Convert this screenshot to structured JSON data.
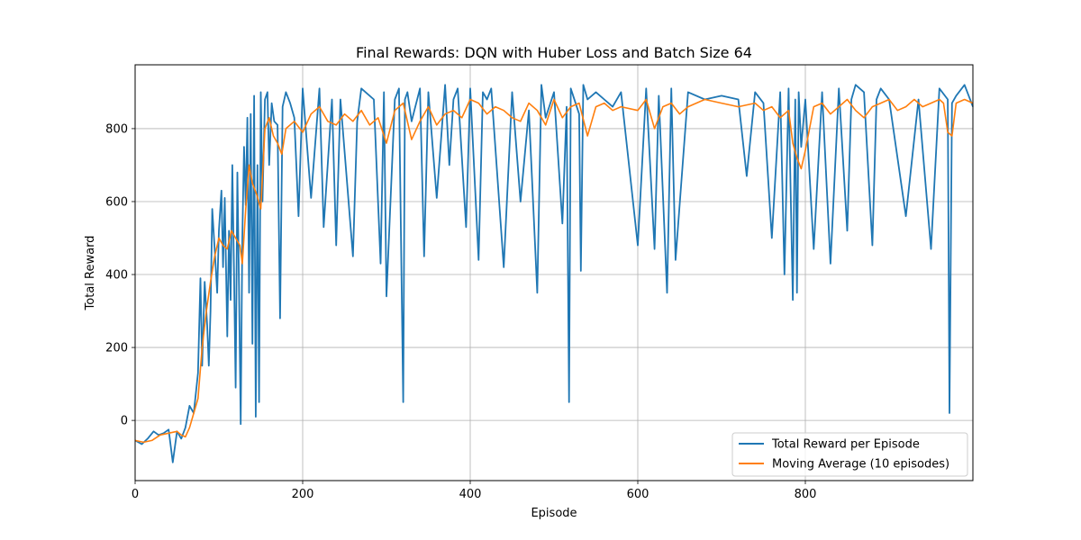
{
  "chart_data": {
    "type": "line",
    "title": "Final Rewards: DQN with Huber Loss and Batch Size 64",
    "xlabel": "Episode",
    "ylabel": "Total Reward",
    "xlim": [
      0,
      1000
    ],
    "ylim": [
      -165,
      975
    ],
    "xticks": [
      0,
      200,
      400,
      600,
      800
    ],
    "yticks": [
      0,
      200,
      400,
      600,
      800
    ],
    "grid": true,
    "legend_position": "lower-right",
    "series": [
      {
        "name": "Total Reward per Episode",
        "color": "#1f77b4",
        "x": [
          0,
          8,
          15,
          22,
          28,
          34,
          40,
          45,
          50,
          55,
          60,
          65,
          70,
          75,
          78,
          80,
          83,
          86,
          88,
          90,
          92,
          95,
          98,
          100,
          103,
          105,
          107,
          110,
          112,
          114,
          116,
          118,
          120,
          122,
          124,
          126,
          128,
          130,
          132,
          134,
          136,
          138,
          140,
          142,
          144,
          146,
          148,
          150,
          152,
          155,
          158,
          160,
          163,
          166,
          170,
          173,
          176,
          180,
          185,
          190,
          195,
          200,
          210,
          220,
          225,
          235,
          240,
          245,
          260,
          265,
          270,
          285,
          293,
          297,
          300,
          310,
          315,
          320,
          322,
          325,
          330,
          340,
          345,
          350,
          360,
          370,
          375,
          380,
          385,
          395,
          400,
          410,
          415,
          420,
          425,
          440,
          450,
          460,
          470,
          480,
          485,
          490,
          500,
          510,
          515,
          518,
          520,
          530,
          532,
          535,
          540,
          550,
          560,
          570,
          580,
          600,
          610,
          620,
          625,
          635,
          640,
          645,
          660,
          680,
          700,
          720,
          730,
          740,
          750,
          760,
          770,
          775,
          780,
          785,
          788,
          790,
          792,
          795,
          800,
          810,
          820,
          830,
          840,
          850,
          855,
          860,
          870,
          880,
          885,
          890,
          900,
          920,
          935,
          950,
          960,
          970,
          972,
          975,
          980,
          990,
          1000
        ],
        "y": [
          -55,
          -65,
          -50,
          -30,
          -40,
          -35,
          -25,
          -115,
          -30,
          -50,
          -20,
          40,
          20,
          130,
          390,
          150,
          380,
          260,
          150,
          300,
          580,
          470,
          350,
          520,
          630,
          420,
          610,
          230,
          520,
          330,
          700,
          420,
          90,
          680,
          370,
          -10,
          500,
          750,
          590,
          830,
          350,
          840,
          210,
          890,
          10,
          700,
          50,
          900,
          600,
          880,
          900,
          700,
          870,
          820,
          810,
          280,
          860,
          900,
          870,
          830,
          560,
          910,
          610,
          910,
          530,
          880,
          480,
          880,
          450,
          820,
          910,
          880,
          430,
          900,
          340,
          880,
          910,
          50,
          880,
          900,
          820,
          910,
          450,
          900,
          610,
          920,
          700,
          880,
          910,
          530,
          910,
          440,
          900,
          880,
          910,
          420,
          900,
          600,
          850,
          350,
          920,
          830,
          900,
          540,
          860,
          50,
          910,
          840,
          410,
          920,
          880,
          900,
          880,
          860,
          900,
          480,
          910,
          470,
          890,
          350,
          910,
          440,
          900,
          880,
          890,
          880,
          670,
          900,
          870,
          500,
          900,
          400,
          910,
          330,
          880,
          350,
          900,
          750,
          880,
          470,
          900,
          430,
          910,
          520,
          880,
          920,
          900,
          480,
          880,
          910,
          880,
          560,
          880,
          470,
          910,
          880,
          20,
          870,
          890,
          920,
          860
        ]
      },
      {
        "name": "Moving Average (10 episodes)",
        "color": "#ff7f0e",
        "x": [
          0,
          10,
          20,
          30,
          40,
          50,
          55,
          60,
          65,
          70,
          75,
          80,
          85,
          90,
          95,
          100,
          105,
          110,
          115,
          120,
          125,
          128,
          132,
          136,
          140,
          145,
          150,
          155,
          160,
          165,
          170,
          175,
          180,
          190,
          200,
          210,
          220,
          230,
          240,
          250,
          260,
          270,
          280,
          290,
          300,
          310,
          320,
          330,
          340,
          350,
          360,
          370,
          380,
          390,
          400,
          410,
          420,
          430,
          440,
          450,
          460,
          470,
          480,
          490,
          500,
          510,
          520,
          530,
          540,
          550,
          560,
          570,
          580,
          600,
          610,
          620,
          630,
          640,
          650,
          660,
          680,
          700,
          720,
          740,
          750,
          760,
          770,
          780,
          785,
          790,
          795,
          800,
          810,
          820,
          830,
          840,
          850,
          860,
          870,
          880,
          890,
          900,
          910,
          920,
          930,
          940,
          950,
          960,
          965,
          970,
          975,
          980,
          990,
          1000
        ],
        "y": [
          -55,
          -60,
          -55,
          -40,
          -35,
          -30,
          -40,
          -45,
          -20,
          20,
          60,
          200,
          300,
          380,
          450,
          500,
          480,
          470,
          520,
          500,
          480,
          430,
          580,
          700,
          650,
          620,
          580,
          800,
          830,
          780,
          760,
          730,
          800,
          820,
          790,
          840,
          860,
          820,
          810,
          840,
          820,
          850,
          810,
          830,
          760,
          850,
          870,
          770,
          820,
          860,
          810,
          840,
          850,
          830,
          880,
          870,
          840,
          860,
          850,
          830,
          820,
          870,
          850,
          810,
          880,
          830,
          860,
          870,
          780,
          860,
          870,
          850,
          860,
          850,
          880,
          800,
          860,
          870,
          840,
          860,
          880,
          870,
          860,
          870,
          850,
          860,
          830,
          850,
          760,
          720,
          690,
          740,
          860,
          870,
          840,
          860,
          880,
          850,
          830,
          860,
          870,
          880,
          850,
          860,
          880,
          860,
          870,
          880,
          870,
          790,
          780,
          870,
          880,
          870
        ]
      }
    ]
  }
}
